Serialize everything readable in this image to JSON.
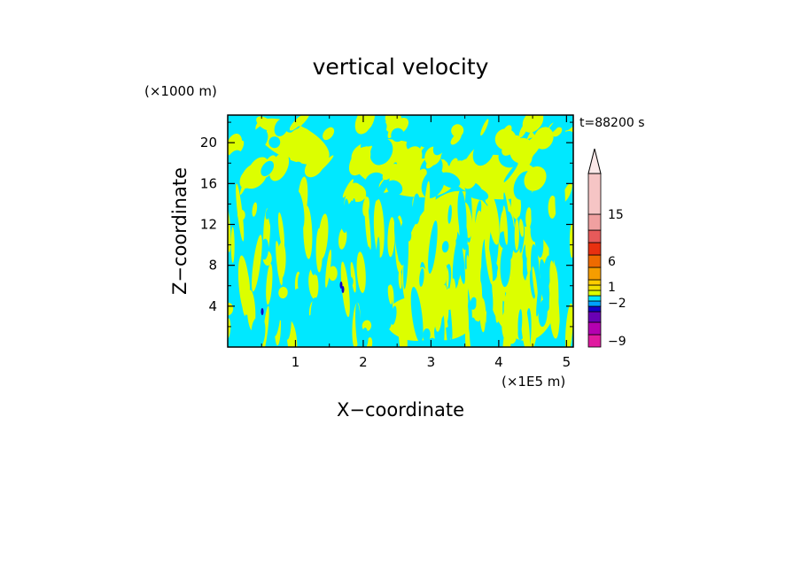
{
  "chart_data": {
    "type": "heatmap",
    "title": "vertical velocity",
    "xlabel": "X−coordinate",
    "ylabel": "Z−coordinate",
    "x_unit": "(×1E5 m)",
    "y_unit": "(×1000 m)",
    "time_label": "t=88200 s",
    "xlim": [
      0.0,
      5.1
    ],
    "ylim": [
      0.0,
      22.7
    ],
    "x_ticks": [
      1,
      2,
      3,
      4,
      5
    ],
    "y_ticks": [
      4,
      8,
      12,
      16,
      20
    ],
    "colorbar": {
      "levels": [
        -9,
        -2,
        1,
        6,
        15
      ],
      "colors": [
        "#e01aa0",
        "#b400b0",
        "#6a00b4",
        "#1400c8",
        "#00a0ff",
        "#00e8ff",
        "#dcff00",
        "#f0e000",
        "#ffcc00",
        "#f59d00",
        "#ee6a00",
        "#e83010",
        "#e75a5a",
        "#f0a0a0",
        "#f6c5c5"
      ],
      "top_extension": true
    },
    "dominant_colors": {
      "positive_small": "#dcff00",
      "negative_small": "#00e8ff",
      "strong_negative": "#1400c8"
    }
  }
}
